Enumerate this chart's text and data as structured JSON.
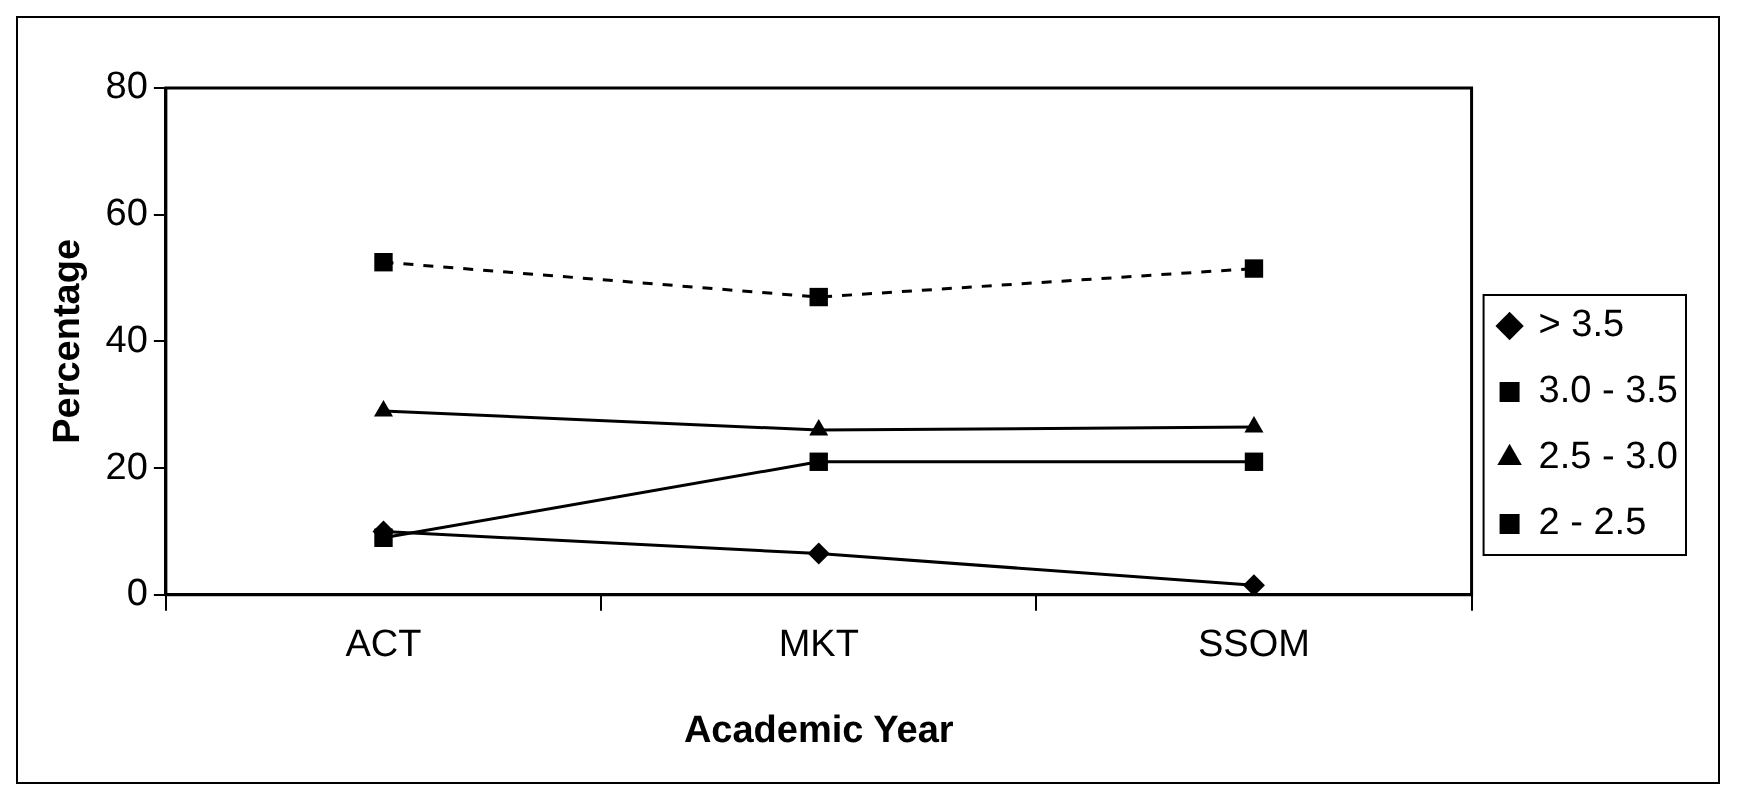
{
  "chart_data": {
    "type": "line",
    "xlabel": "Academic Year",
    "ylabel": "Percentage",
    "categories": [
      "ACT",
      "MKT",
      "SSOM"
    ],
    "series": [
      {
        "name": "> 3.5",
        "color": "#000000",
        "marker": "diamond",
        "line_style": "solid",
        "values": [
          10,
          6.5,
          1.5
        ]
      },
      {
        "name": "3.0 - 3.5",
        "color": "#000000",
        "marker": "square",
        "line_style": "solid",
        "values": [
          9,
          21,
          21
        ]
      },
      {
        "name": "2.5 - 3.0",
        "color": "#000000",
        "marker": "triangle",
        "line_style": "solid",
        "values": [
          29,
          26,
          26.5
        ]
      },
      {
        "name": "2 - 2.5",
        "color": "#000000",
        "marker": "square",
        "line_style": "dashed",
        "values": [
          52.5,
          47,
          51.5
        ]
      }
    ],
    "ylim": [
      0,
      80
    ],
    "yticks": [
      0,
      20,
      40,
      60,
      80
    ],
    "grid": false,
    "legend": "right"
  }
}
